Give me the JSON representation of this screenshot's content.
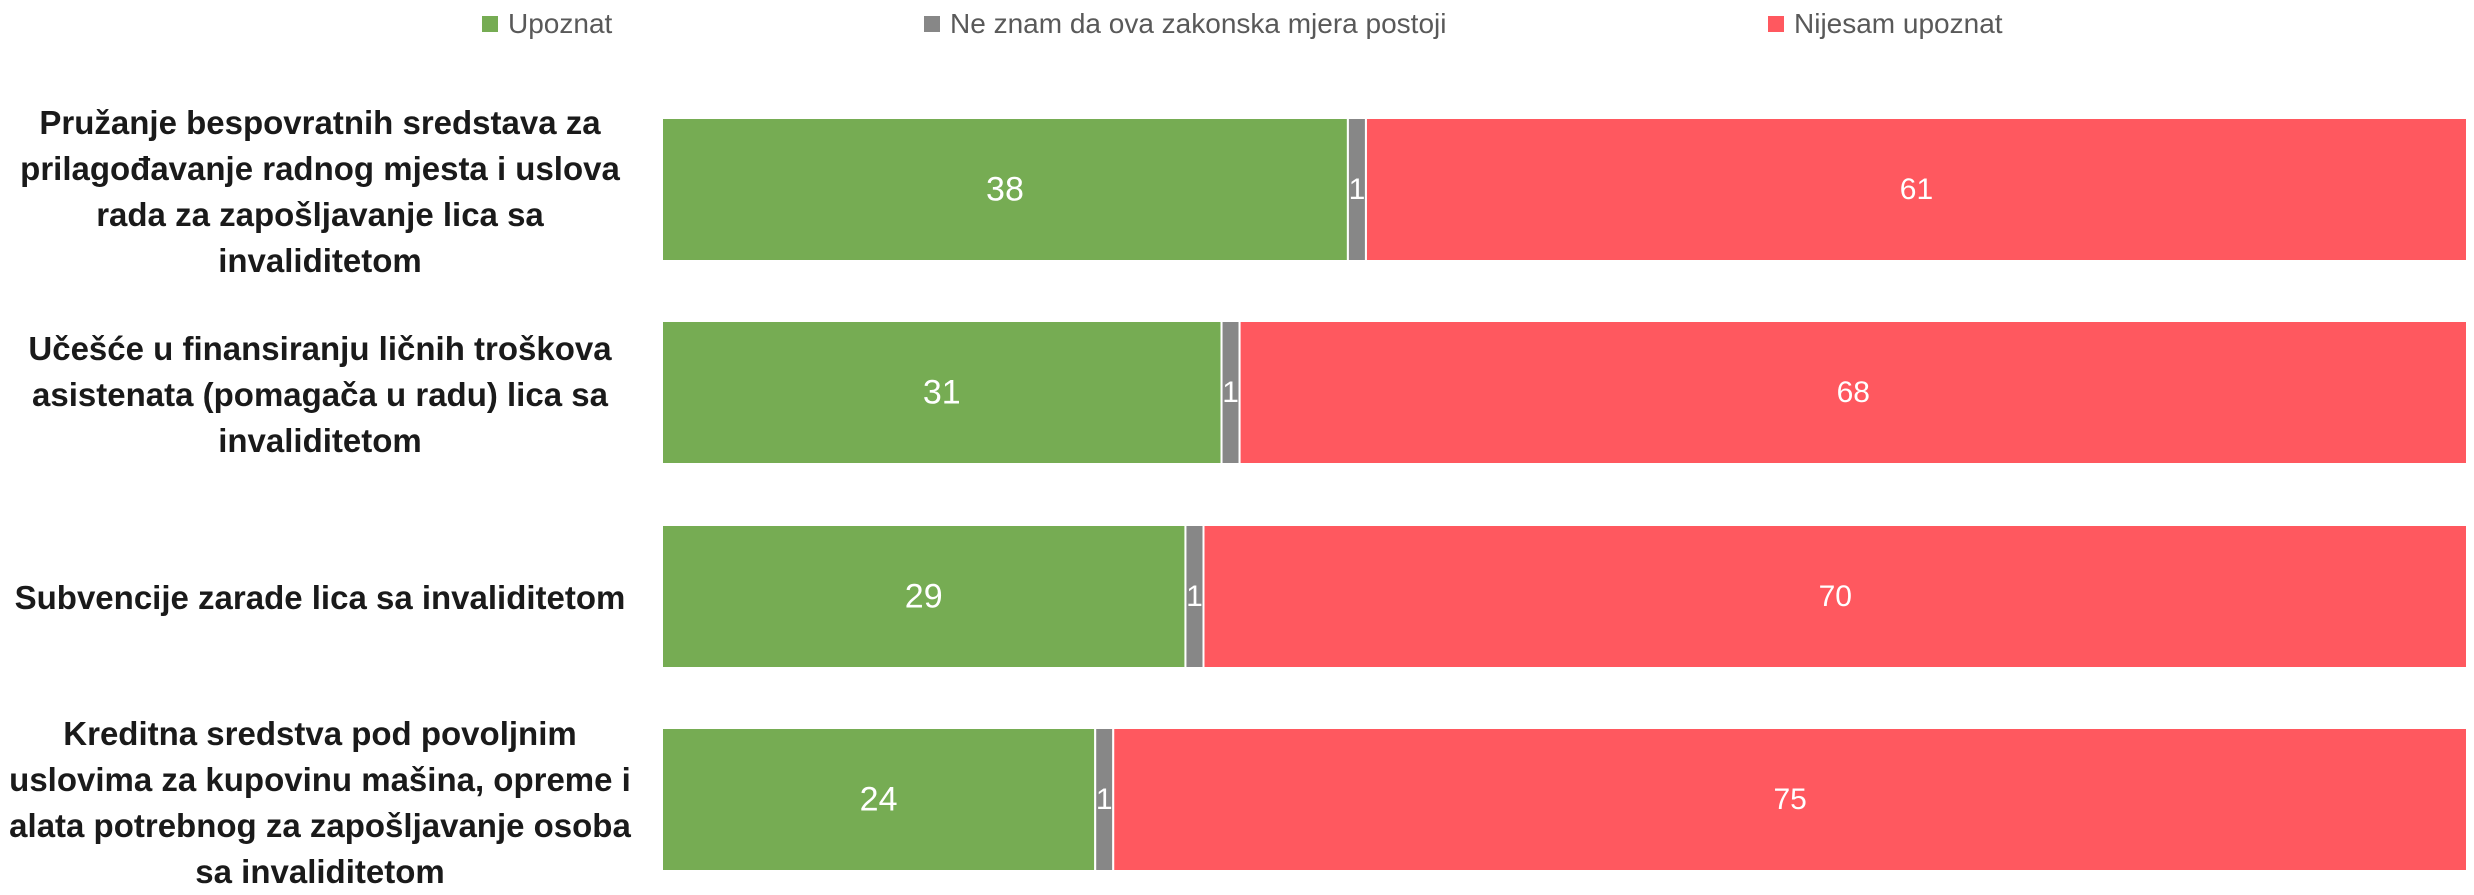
{
  "chart_data": {
    "type": "bar",
    "orientation": "horizontal",
    "stacked": true,
    "legend_position": "top",
    "xlim": [
      0,
      100
    ],
    "grid": false,
    "categories": [
      "Pružanje bespovratnih sredstava za prilagođavanje radnog mjesta i uslova rada za zapošljavanje lica sa invaliditetom",
      "Učešće u finansiranju ličnih troškova asistenata (pomagača u radu) lica sa invaliditetom",
      "Subvencije zarade lica sa invaliditetom",
      "Kreditna sredstva pod povoljnim uslovima za kupovinu mašina, opreme i alata potrebnog za zapošljavanje osoba sa invaliditetom"
    ],
    "series": [
      {
        "name": "Upoznat",
        "color": "#76AC53",
        "values": [
          38,
          31,
          29,
          24
        ]
      },
      {
        "name": "Ne znam da ova zakonska mjera postoji",
        "color": "#878787",
        "values": [
          1,
          1,
          1,
          1
        ]
      },
      {
        "name": "Nijesam upoznat",
        "color": "#FF585F",
        "values": [
          61,
          68,
          70,
          75
        ]
      }
    ]
  }
}
